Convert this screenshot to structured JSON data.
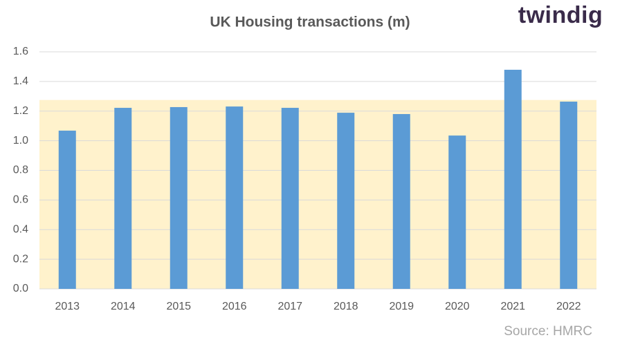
{
  "chart_data": {
    "type": "bar",
    "title": "UK Housing transactions (m)",
    "logo": "twindig",
    "source": "Source: HMRC",
    "categories": [
      "2013",
      "2014",
      "2015",
      "2016",
      "2017",
      "2018",
      "2019",
      "2020",
      "2021",
      "2022"
    ],
    "values": [
      1.068,
      1.222,
      1.227,
      1.231,
      1.222,
      1.189,
      1.18,
      1.035,
      1.479,
      1.264
    ],
    "color": "#5b9bd5",
    "ylim": [
      0,
      1.6
    ],
    "yticks": [
      {
        "value": 0,
        "label": "0.0"
      },
      0.2,
      0.4,
      0.6,
      0.8,
      {
        "value": 1,
        "label": "1.0"
      },
      1.2,
      1.4,
      1.6
    ],
    "grid": true,
    "highlight_range": [
      0,
      1.275
    ],
    "highlight_color": "#fff2cc"
  }
}
